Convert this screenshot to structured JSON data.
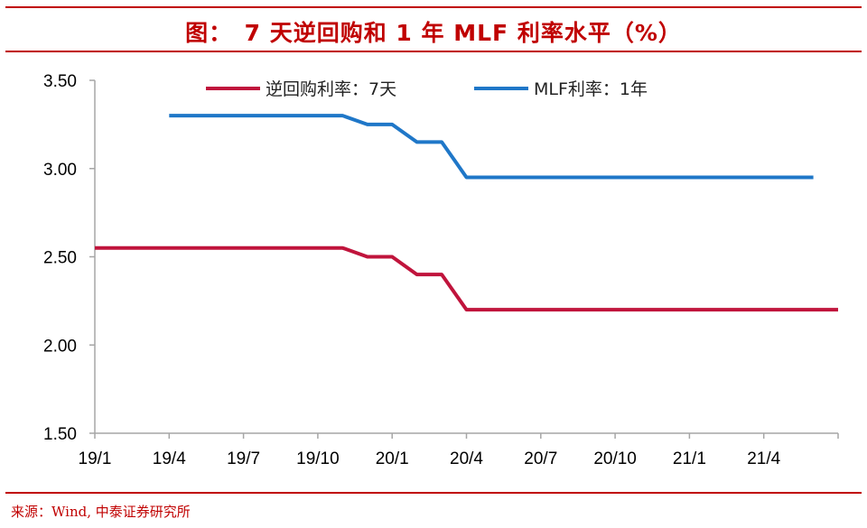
{
  "header": {
    "title": "图：　7 天逆回购和 1 年 MLF 利率水平（%）"
  },
  "footer": {
    "source": "来源：Wind, 中泰证券研究所"
  },
  "colors": {
    "accent_red": "#c00000",
    "series_reverse_repo": "#c0143c",
    "series_mlf": "#1f77c8",
    "axis": "#a6a6a6"
  },
  "chart_data": {
    "type": "line",
    "title": "图：　7 天逆回购和 1 年 MLF 利率水平（%）",
    "xlabel": "",
    "ylabel": "",
    "x_ticks": [
      "19/1",
      "19/4",
      "19/7",
      "19/10",
      "20/1",
      "20/4",
      "20/7",
      "20/10",
      "21/1",
      "21/4"
    ],
    "x_range": [
      "2019-01",
      "2021-07"
    ],
    "y_ticks": [
      "1.50",
      "2.00",
      "2.50",
      "3.00",
      "3.50"
    ],
    "ylim": [
      1.5,
      3.5
    ],
    "grid": false,
    "legend_position": "top",
    "series": [
      {
        "name": "逆回购利率：7天",
        "color": "#c0143c",
        "points": [
          {
            "x": "2019-01",
            "y": 2.55
          },
          {
            "x": "2019-11",
            "y": 2.55
          },
          {
            "x": "2019-12",
            "y": 2.5
          },
          {
            "x": "2020-01",
            "y": 2.5
          },
          {
            "x": "2020-02",
            "y": 2.4
          },
          {
            "x": "2020-03",
            "y": 2.4
          },
          {
            "x": "2020-04",
            "y": 2.2
          },
          {
            "x": "2021-07",
            "y": 2.2
          }
        ]
      },
      {
        "name": "MLF利率：1年",
        "color": "#1f77c8",
        "points": [
          {
            "x": "2019-04",
            "y": 3.3
          },
          {
            "x": "2019-11",
            "y": 3.3
          },
          {
            "x": "2019-12",
            "y": 3.25
          },
          {
            "x": "2020-01",
            "y": 3.25
          },
          {
            "x": "2020-02",
            "y": 3.15
          },
          {
            "x": "2020-03",
            "y": 3.15
          },
          {
            "x": "2020-04",
            "y": 2.95
          },
          {
            "x": "2021-06",
            "y": 2.95
          }
        ]
      }
    ]
  }
}
